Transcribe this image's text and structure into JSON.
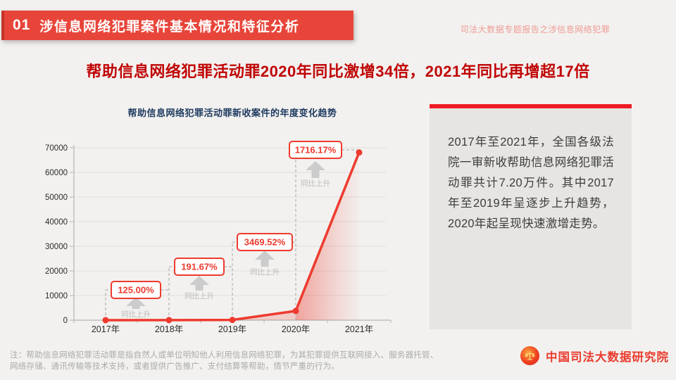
{
  "slide": {
    "header": {
      "badge": "01",
      "title": "涉信息网络犯罪案件基本情况和特征分析",
      "report_label": "司法大数据专题报告之涉信息网络犯罪"
    },
    "headline": "帮助信息网络犯罪活动罪2020年同比激增34倍，2021年同比再增超17倍",
    "side_panel": {
      "text": "2017年至2021年，全国各级法院一审新收帮助信息网络犯罪活动罪共计7.20万件。其中2017年至2019年呈逐步上升趋势，2020年起呈现快速激增走势。"
    },
    "footer": {
      "note": "注：帮助信息网络犯罪活动罪是指自然人或单位明知他人利用信息网络犯罪，为其犯罪提供互联网接入、服务器托管、网络存储、通讯传输等技术支持，或者提供广告推广、支付结算等帮助，情节严重的行为。",
      "org_name": "中国司法大数据研究院",
      "logo_icon": "court-emblem-icon"
    }
  },
  "colors": {
    "accent_red": "#ee3a2e",
    "banner_red": "#e8453a",
    "panel_bar_red": "#ee1c25",
    "headline_red": "#c00505",
    "title_navy": "#1e3a5f",
    "arrow_gray": "#cccccc",
    "panel_gray": "#e6e5e3"
  },
  "chart_data": {
    "type": "line",
    "title": "帮助信息网络犯罪活动罪新收案件的年度变化趋势",
    "categories": [
      "2017年",
      "2018年",
      "2019年",
      "2020年",
      "2021年"
    ],
    "values": [
      16,
      36,
      105,
      3750,
      68100
    ],
    "ylim": [
      0,
      70000
    ],
    "y_ticks": [
      0,
      10000,
      20000,
      30000,
      40000,
      50000,
      60000,
      70000
    ],
    "xlabel": "",
    "ylabel": "",
    "grid": true,
    "legend": false,
    "annotations": [
      {
        "category": "2018年",
        "label": "125.00%",
        "caption": "同比上升"
      },
      {
        "category": "2019年",
        "label": "191.67%",
        "caption": "同比上升"
      },
      {
        "category": "2020年",
        "label": "3469.52%",
        "caption": "同比上升"
      },
      {
        "category": "2021年",
        "label": "1716.17%",
        "caption": "同比上升"
      }
    ]
  }
}
